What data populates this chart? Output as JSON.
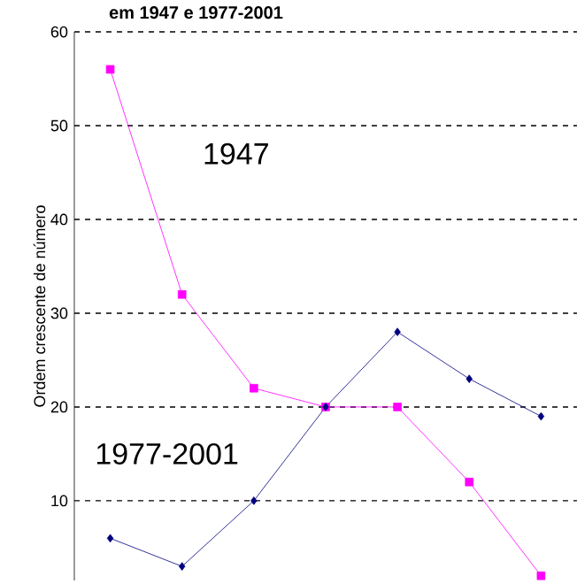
{
  "chart_data": {
    "type": "line",
    "title": "em 1947 e 1977-2001",
    "ylabel": "Ordem crescente de número",
    "categories": [
      null,
      null,
      null,
      null,
      null,
      null,
      null
    ],
    "series": [
      {
        "name": "1947",
        "color": "#ff00ff",
        "marker": "square",
        "values": [
          56,
          32,
          22,
          20,
          20,
          12,
          2
        ]
      },
      {
        "name": "1977-2001",
        "color": "#000080",
        "marker": "diamond",
        "values": [
          6,
          3,
          10,
          20,
          28,
          23,
          19
        ]
      }
    ],
    "ylim": [
      1.5,
      60
    ],
    "yticks": [
      10,
      20,
      30,
      40,
      50,
      60
    ],
    "grid": "y"
  }
}
